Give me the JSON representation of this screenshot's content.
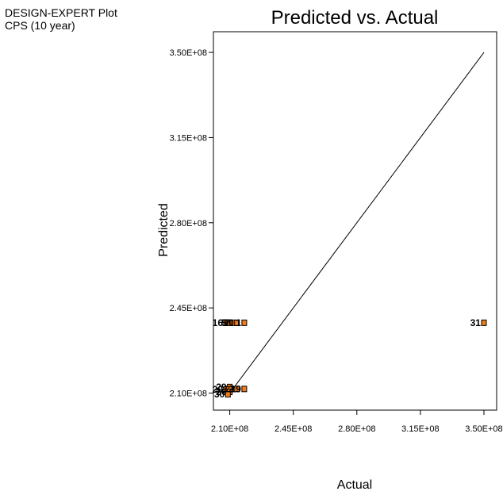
{
  "header": {
    "line1": "DESIGN-EXPERT Plot",
    "line2": "CPS (10 year)"
  },
  "chart_data": {
    "type": "scatter",
    "title": "Predicted vs. Actual",
    "xlabel": "Actual",
    "ylabel": "Predicted",
    "xlim": [
      201000000.0,
      357000000.0
    ],
    "ylim": [
      203000000.0,
      358500000.0
    ],
    "xticks": [
      210000000.0,
      245000000.0,
      280000000.0,
      315000000.0,
      350000000.0
    ],
    "yticks": [
      210000000.0,
      245000000.0,
      280000000.0,
      315000000.0,
      350000000.0
    ],
    "xtick_labels": [
      "2.10E+08",
      "2.45E+08",
      "2.80E+08",
      "3.15E+08",
      "3.50E+08"
    ],
    "ytick_labels": [
      "2.10E+08",
      "2.45E+08",
      "2.80E+08",
      "3.15E+08",
      "3.50E+08"
    ],
    "reference_line": {
      "x": [
        210000000.0,
        350000000.0
      ],
      "y": [
        210000000.0,
        350000000.0
      ]
    },
    "marker_color": "#f07d1c",
    "points": [
      {
        "x": 208000000.0,
        "y": 238900000.0,
        "label": "16"
      },
      {
        "x": 210000000.0,
        "y": 238900000.0,
        "label": "5"
      },
      {
        "x": 212000000.0,
        "y": 238900000.0,
        "label": "7"
      },
      {
        "x": 214000000.0,
        "y": 238900000.0,
        "label": "10"
      },
      {
        "x": 218000000.0,
        "y": 238900000.0,
        "label": "1"
      },
      {
        "x": 210000000.0,
        "y": 212500000.0,
        "label": "29"
      },
      {
        "x": 208000000.0,
        "y": 211500000.0,
        "label": "20"
      },
      {
        "x": 210000000.0,
        "y": 210500000.0,
        "label": "26"
      },
      {
        "x": 209000000.0,
        "y": 209500000.0,
        "label": "30"
      },
      {
        "x": 214000000.0,
        "y": 211700000.0,
        "label": "12"
      },
      {
        "x": 218000000.0,
        "y": 211700000.0,
        "label": "19"
      },
      {
        "x": 350000000.0,
        "y": 238900000.0,
        "label": "31"
      }
    ]
  }
}
